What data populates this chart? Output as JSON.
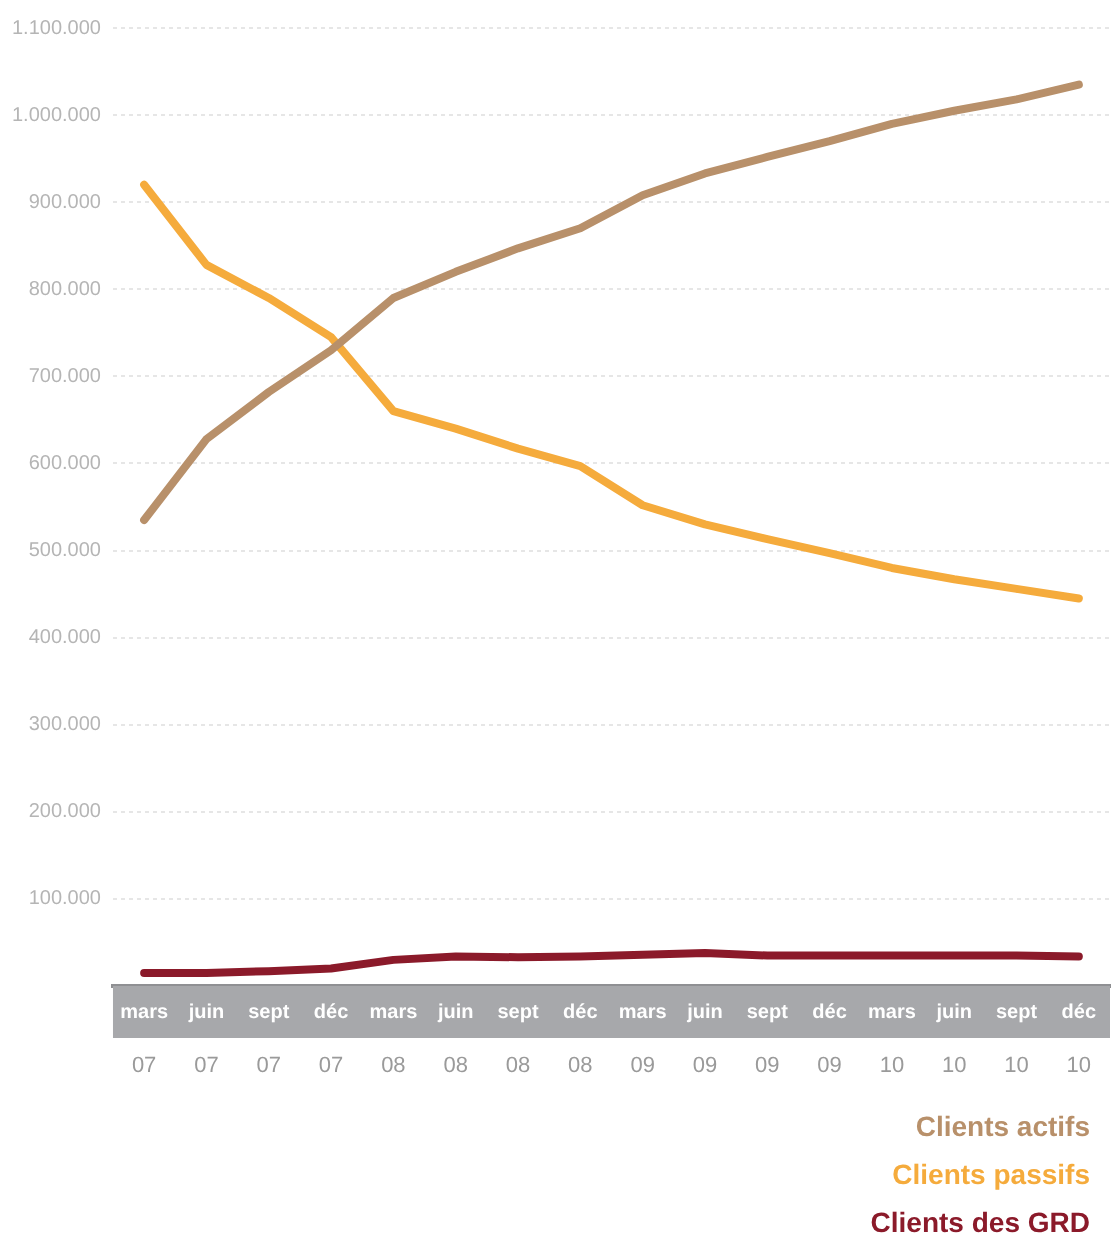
{
  "chart_data": {
    "type": "line",
    "categories": [
      "mars 07",
      "juin 07",
      "sept 07",
      "déc 07",
      "mars 08",
      "juin 08",
      "sept 08",
      "déc 08",
      "mars 09",
      "juin 09",
      "sept 09",
      "déc 09",
      "mars 10",
      "juin 10",
      "sept 10",
      "déc 10"
    ],
    "series": [
      {
        "name": "Clients actifs",
        "color": "#b8906a",
        "values": [
          535000,
          628000,
          682000,
          730000,
          790000,
          820000,
          847000,
          870000,
          908000,
          933000,
          952000,
          970000,
          990000,
          1005000,
          1018000,
          1035000
        ]
      },
      {
        "name": "Clients passifs",
        "color": "#f5ab3c",
        "values": [
          920000,
          828000,
          790000,
          745000,
          660000,
          640000,
          617000,
          597000,
          552000,
          530000,
          513000,
          497000,
          480000,
          467000,
          456000,
          445000
        ]
      },
      {
        "name": "Clients des GRD",
        "color": "#8b1a2a",
        "values": [
          15000,
          15000,
          17000,
          20000,
          30000,
          34000,
          33000,
          34000,
          36000,
          38000,
          35000,
          35000,
          35000,
          35000,
          35000,
          34000
        ]
      }
    ],
    "ylim": [
      0,
      1100000
    ],
    "yticks": [
      {
        "value": 100000,
        "label": "100.000"
      },
      {
        "value": 200000,
        "label": "200.000"
      },
      {
        "value": 300000,
        "label": "300.000"
      },
      {
        "value": 400000,
        "label": "400.000"
      },
      {
        "value": 500000,
        "label": "500.000"
      },
      {
        "value": 600000,
        "label": "600.000"
      },
      {
        "value": 700000,
        "label": "700.000"
      },
      {
        "value": 800000,
        "label": "800.000"
      },
      {
        "value": 900000,
        "label": "900.000"
      },
      {
        "value": 1000000,
        "label": "1.000.000"
      },
      {
        "value": 1100000,
        "label": "1.100.000"
      }
    ],
    "grid": "y",
    "legend": "bottom right",
    "marker": "none",
    "line_style": "solid"
  }
}
